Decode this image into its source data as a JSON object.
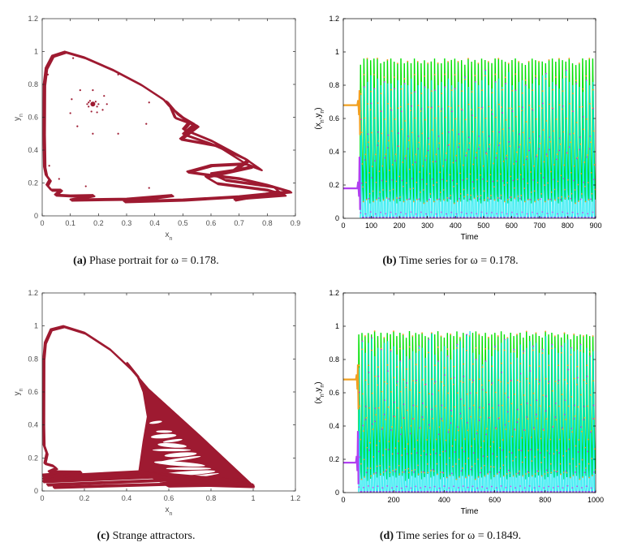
{
  "colors": {
    "attractor": "#9e1a31",
    "y_line": "#00e000",
    "y_marker": "#f0a020",
    "x_line": "#00e6ee",
    "x_marker": "#b040f0",
    "matlab_axis": "#262626",
    "matlab_text": "#4d4d4d"
  },
  "captions": [
    {
      "label": "(a)",
      "text": "Phase portrait for ω = 0.178."
    },
    {
      "label": "(b)",
      "text": "Time series for ω = 0.178."
    },
    {
      "label": "(c)",
      "text": "Strange attractors."
    },
    {
      "label": "(d)",
      "text": "Time series for ω = 0.1849."
    }
  ],
  "chart_data": [
    {
      "id": "a",
      "type": "scatter",
      "xlabel": "x_n",
      "ylabel": "y_n",
      "xlim": [
        0,
        0.9
      ],
      "ylim": [
        0,
        1.2
      ],
      "xticks": [
        "0",
        "0.1",
        "0.2",
        "0.3",
        "0.4",
        "0.5",
        "0.6",
        "0.7",
        "0.8",
        "0.9"
      ],
      "yticks": [
        "0",
        "0.2",
        "0.4",
        "0.6",
        "0.8",
        "1",
        "1.2"
      ],
      "grid": false,
      "curves": [
        [
          [
            0.43,
            0.71
          ],
          [
            0.35,
            0.8
          ],
          [
            0.25,
            0.89
          ],
          [
            0.15,
            0.965
          ],
          [
            0.08,
            1.0
          ],
          [
            0.035,
            0.975
          ],
          [
            0.012,
            0.9
          ],
          [
            0.005,
            0.8
          ],
          [
            0.004,
            0.5
          ],
          [
            0.006,
            0.3
          ],
          [
            0.012,
            0.25
          ],
          [
            0.025,
            0.22
          ],
          [
            0.015,
            0.19
          ],
          [
            0.03,
            0.16
          ],
          [
            0.065,
            0.16
          ],
          [
            0.045,
            0.13
          ],
          [
            0.1,
            0.125
          ],
          [
            0.18,
            0.127
          ],
          [
            0.1,
            0.1
          ],
          [
            0.3,
            0.105
          ],
          [
            0.46,
            0.127
          ],
          [
            0.29,
            0.09
          ],
          [
            0.5,
            0.1
          ],
          [
            0.7,
            0.12
          ],
          [
            0.88,
            0.15
          ],
          [
            0.8,
            0.19
          ],
          [
            0.7,
            0.23
          ],
          [
            0.6,
            0.25
          ],
          [
            0.515,
            0.27
          ],
          [
            0.6,
            0.31
          ],
          [
            0.72,
            0.32
          ],
          [
            0.775,
            0.285
          ],
          [
            0.72,
            0.35
          ],
          [
            0.6,
            0.44
          ],
          [
            0.5,
            0.5
          ],
          [
            0.54,
            0.56
          ],
          [
            0.5,
            0.6
          ],
          [
            0.45,
            0.67
          ],
          [
            0.43,
            0.71
          ]
        ],
        [
          [
            0.44,
            0.7
          ],
          [
            0.48,
            0.62
          ],
          [
            0.52,
            0.57
          ],
          [
            0.5,
            0.53
          ],
          [
            0.6,
            0.46
          ],
          [
            0.73,
            0.34
          ],
          [
            0.68,
            0.28
          ],
          [
            0.6,
            0.26
          ],
          [
            0.65,
            0.22
          ],
          [
            0.82,
            0.18
          ],
          [
            0.84,
            0.15
          ],
          [
            0.68,
            0.1
          ]
        ],
        [
          [
            0.45,
            0.68
          ],
          [
            0.47,
            0.6
          ],
          [
            0.55,
            0.55
          ],
          [
            0.49,
            0.47
          ],
          [
            0.62,
            0.43
          ],
          [
            0.74,
            0.3
          ],
          [
            0.58,
            0.24
          ],
          [
            0.62,
            0.2
          ],
          [
            0.8,
            0.16
          ],
          [
            0.86,
            0.13
          ],
          [
            0.7,
            0.11
          ]
        ]
      ],
      "points": [
        [
          0.11,
          0.96
        ],
        [
          0.02,
          0.86
        ],
        [
          0.27,
          0.86
        ],
        [
          0.135,
          0.765
        ],
        [
          0.18,
          0.765
        ],
        [
          0.22,
          0.73
        ],
        [
          0.105,
          0.71
        ],
        [
          0.38,
          0.69
        ],
        [
          0.23,
          0.68
        ],
        [
          0.1,
          0.625
        ],
        [
          0.01,
          0.62
        ],
        [
          0.215,
          0.645
        ],
        [
          0.195,
          0.63
        ],
        [
          0.175,
          0.635
        ],
        [
          0.37,
          0.56
        ],
        [
          0.125,
          0.545
        ],
        [
          0.18,
          0.5
        ],
        [
          0.27,
          0.5
        ],
        [
          0.01,
          0.435
        ],
        [
          0.025,
          0.305
        ],
        [
          0.06,
          0.225
        ],
        [
          0.155,
          0.18
        ],
        [
          0.38,
          0.17
        ],
        [
          0.165,
          0.69
        ],
        [
          0.17,
          0.7
        ],
        [
          0.19,
          0.695
        ],
        [
          0.2,
          0.68
        ],
        [
          0.195,
          0.665
        ],
        [
          0.165,
          0.665
        ],
        [
          0.16,
          0.68
        ]
      ],
      "focus": [
        0.18,
        0.68
      ]
    },
    {
      "id": "b",
      "type": "line",
      "xlabel": "Time",
      "ylabel": "(x_n,y_n)",
      "xlim": [
        0,
        900
      ],
      "ylim": [
        0,
        1.2
      ],
      "xticks": [
        "0",
        "100",
        "200",
        "300",
        "400",
        "500",
        "600",
        "700",
        "800",
        "900"
      ],
      "yticks": [
        "0",
        "0.2",
        "0.4",
        "0.6",
        "0.8",
        "1",
        "1.2"
      ],
      "grid": false,
      "initial": {
        "x": 0.18,
        "y": 0.68
      },
      "transient_end": 50,
      "oscillation_start": 60,
      "series": [
        {
          "var": "y",
          "peaks": [
            0.96,
            1.0,
            1.0,
            0.99,
            1.0,
            1.0,
            0.97,
            0.98,
            0.99,
            1.0,
            0.98,
            0.97,
            1.0,
            0.97,
            0.98,
            0.97,
            1.0,
            0.98,
            0.97,
            0.99,
            0.97,
            0.98,
            1.0,
            0.97,
            0.97,
            1.0,
            0.98,
            0.99,
            1.0,
            0.98,
            0.99,
            0.96,
            1.0,
            0.98,
            0.99,
            0.97,
            1.0,
            0.99,
            0.98,
            0.97,
            1.0,
            1.0,
            0.99,
            0.98,
            0.97,
            0.99,
            1.0,
            0.98,
            0.97,
            0.96,
            0.98,
            1.0,
            0.99,
            0.98,
            0.98,
            0.97,
            0.99,
            1.0,
            0.98,
            1.0,
            0.99,
            0.98,
            1.0,
            0.97,
            0.96,
            0.97,
            1.0,
            0.99,
            1.0,
            1.0
          ],
          "troughs": [
            0.12,
            0.1,
            0.11,
            0.09,
            0.1,
            0.12,
            0.1,
            0.11,
            0.13,
            0.1,
            0.11,
            0.09,
            0.12,
            0.1,
            0.14,
            0.11,
            0.1,
            0.12,
            0.1,
            0.09,
            0.11,
            0.13,
            0.1,
            0.12,
            0.1,
            0.11,
            0.1,
            0.12,
            0.09,
            0.11,
            0.1,
            0.13,
            0.1,
            0.11,
            0.12,
            0.1,
            0.09,
            0.11,
            0.1,
            0.12,
            0.11,
            0.1,
            0.13,
            0.1,
            0.09,
            0.11,
            0.12,
            0.1,
            0.11,
            0.1,
            0.12,
            0.09,
            0.1,
            0.11,
            0.13,
            0.1,
            0.12,
            0.1,
            0.11,
            0.09,
            0.1,
            0.12,
            0.11,
            0.1,
            0.09,
            0.11,
            0.12,
            0.1,
            0.11,
            0.1
          ]
        },
        {
          "var": "x",
          "peaks": [
            0.74,
            0.79,
            0.82,
            0.86,
            0.78,
            0.84,
            0.8,
            0.82,
            0.81,
            0.81,
            0.78,
            0.83,
            0.8,
            0.81,
            0.8,
            0.84,
            0.76,
            0.8,
            0.82,
            0.79,
            0.78,
            0.83,
            0.77,
            0.8,
            0.82,
            0.79,
            0.84,
            0.8,
            0.78,
            0.82,
            0.81,
            0.85,
            0.79,
            0.77,
            0.82,
            0.8,
            0.83,
            0.89,
            0.8,
            0.78,
            0.82,
            0.84,
            0.79,
            0.81,
            0.88,
            0.8,
            0.77,
            0.82,
            0.83,
            0.8,
            0.78,
            0.81,
            0.84,
            0.8,
            0.86,
            0.87,
            0.79,
            0.82,
            0.8,
            0.78,
            0.84,
            0.89,
            0.82,
            0.8,
            0.81,
            0.79,
            0.76,
            0.83,
            0.8,
            0.82
          ],
          "troughs": [
            0.005
          ]
        }
      ]
    },
    {
      "id": "c",
      "type": "scatter",
      "xlabel": "x_n",
      "ylabel": "y_n",
      "xlim": [
        0,
        1.2
      ],
      "ylim": [
        0,
        1.2
      ],
      "xticks": [
        "0",
        "0.2",
        "0.4",
        "0.6",
        "0.8",
        "1",
        "1.2"
      ],
      "yticks": [
        "0",
        "0.2",
        "0.4",
        "0.6",
        "0.8",
        "1",
        "1.2"
      ],
      "grid": false,
      "curves": [
        [
          [
            1.0,
            0.03
          ],
          [
            0.75,
            0.33
          ],
          [
            0.5,
            0.62
          ],
          [
            0.42,
            0.74
          ],
          [
            0.32,
            0.86
          ],
          [
            0.2,
            0.96
          ],
          [
            0.1,
            1.0
          ],
          [
            0.04,
            0.98
          ],
          [
            0.012,
            0.9
          ],
          [
            0.005,
            0.8
          ],
          [
            0.004,
            0.4
          ],
          [
            0.006,
            0.28
          ],
          [
            0.02,
            0.23
          ],
          [
            0.01,
            0.17
          ],
          [
            0.05,
            0.155
          ],
          [
            0.065,
            0.14
          ],
          [
            0.03,
            0.12
          ],
          [
            0.18,
            0.118
          ],
          [
            0.0,
            0.1
          ]
        ],
        [
          [
            0.4,
            0.78
          ],
          [
            0.45,
            0.7
          ],
          [
            0.48,
            0.6
          ],
          [
            0.5,
            0.45
          ],
          [
            0.48,
            0.3
          ],
          [
            0.46,
            0.12
          ]
        ],
        [
          [
            0.0,
            0.09
          ],
          [
            0.46,
            0.12
          ],
          [
            0.97,
            0.06
          ]
        ],
        [
          [
            0.0,
            0.075
          ],
          [
            0.5,
            0.105
          ],
          [
            0.96,
            0.07
          ]
        ],
        [
          [
            0.0,
            0.06
          ],
          [
            0.55,
            0.09
          ],
          [
            0.98,
            0.05
          ]
        ],
        [
          [
            0.02,
            0.04
          ],
          [
            0.6,
            0.07
          ],
          [
            1.0,
            0.04
          ]
        ],
        [
          [
            0.05,
            0.025
          ],
          [
            0.6,
            0.045
          ],
          [
            1.0,
            0.03
          ]
        ]
      ],
      "filled_region": [
        [
          0.46,
          0.12
        ],
        [
          0.48,
          0.3
        ],
        [
          0.5,
          0.45
        ],
        [
          0.48,
          0.6
        ],
        [
          0.45,
          0.7
        ],
        [
          0.5,
          0.62
        ],
        [
          0.75,
          0.33
        ],
        [
          1.0,
          0.03
        ],
        [
          0.6,
          0.02
        ]
      ]
    },
    {
      "id": "d",
      "type": "line",
      "xlabel": "Time",
      "ylabel": "(x_n,y_n)",
      "xlim": [
        0,
        1000
      ],
      "ylim": [
        0,
        1.2
      ],
      "xticks": [
        "0",
        "200",
        "400",
        "600",
        "800",
        "1000"
      ],
      "yticks": [
        "0",
        "0.2",
        "0.4",
        "0.6",
        "0.8",
        "1",
        "1.2"
      ],
      "grid": false,
      "initial": {
        "x": 0.18,
        "y": 0.68
      },
      "transient_end": 50,
      "oscillation_start": 60,
      "series": [
        {
          "var": "y",
          "peaks": [
            0.99,
            1.0,
            0.98,
            1.0,
            0.99,
            1.01,
            0.98,
            1.0,
            0.97,
            1.0,
            0.99,
            1.01,
            0.98,
            1.0,
            0.99,
            0.97,
            1.01,
            0.98,
            1.0,
            0.99,
            1.0,
            0.98,
            0.97,
            1.0,
            0.99,
            1.01,
            0.98,
            0.97,
            1.0,
            0.99,
            0.98,
            1.01,
            0.97,
            1.0,
            0.99,
            0.98,
            1.0,
            1.01,
            0.99,
            0.98,
            1.0,
            0.97,
            0.99,
            1.0,
            0.98,
            1.01,
            0.99,
            0.97,
            1.0,
            0.98,
            0.99,
            1.0,
            0.97,
            1.01,
            0.98,
            0.99,
            1.0,
            0.98,
            0.97,
            1.01,
            0.99,
            1.0,
            0.98,
            0.99,
            0.97,
            1.0,
            0.99,
            0.96,
            0.99,
            0.98,
            0.99,
            0.98,
            0.99,
            0.98,
            0.98
          ],
          "troughs": [
            0.1,
            0.08,
            0.11,
            0.07,
            0.1,
            0.12,
            0.09,
            0.11,
            0.1,
            0.08,
            0.12,
            0.1,
            0.09,
            0.11,
            0.1,
            0.07,
            0.12,
            0.1,
            0.09,
            0.11,
            0.08,
            0.1,
            0.12,
            0.09,
            0.1,
            0.11,
            0.08,
            0.1,
            0.09,
            0.12,
            0.1,
            0.08,
            0.11,
            0.1,
            0.09,
            0.12,
            0.1,
            0.08,
            0.11,
            0.09,
            0.1,
            0.12,
            0.08,
            0.1,
            0.11,
            0.09,
            0.1,
            0.08,
            0.12,
            0.1,
            0.09,
            0.11,
            0.1,
            0.08,
            0.12,
            0.1,
            0.09,
            0.11,
            0.1,
            0.08,
            0.1,
            0.12,
            0.09,
            0.1,
            0.11,
            0.08,
            0.1,
            0.09,
            0.12,
            0.1,
            0.08,
            0.11,
            0.1,
            0.09,
            0.1
          ]
        },
        {
          "var": "x",
          "peaks": [
            0.75,
            0.91,
            0.84,
            0.9,
            0.93,
            0.82,
            0.87,
            0.86,
            0.9,
            0.91,
            0.85,
            0.88,
            0.83,
            0.79,
            0.86,
            0.82,
            0.8,
            0.85,
            0.84,
            0.88,
            0.87,
            0.81,
            0.92,
            0.96,
            0.83,
            0.79,
            0.85,
            0.88,
            0.82,
            0.8,
            0.86,
            0.89,
            0.91,
            0.87,
            0.95,
            0.97,
            0.84,
            0.8,
            0.83,
            0.77,
            0.79,
            0.86,
            0.82,
            0.88,
            0.85,
            0.9,
            0.92,
            0.93,
            0.84,
            0.86,
            0.81,
            0.89,
            0.85,
            0.87,
            0.91,
            0.88,
            0.9,
            0.84,
            0.86,
            0.94,
            0.83,
            0.89,
            0.87,
            0.84,
            0.88,
            0.9,
            0.92,
            0.87,
            0.85,
            0.86,
            0.89,
            0.84,
            0.87,
            0.82,
            0.85
          ],
          "troughs": [
            0.005
          ]
        }
      ]
    }
  ]
}
